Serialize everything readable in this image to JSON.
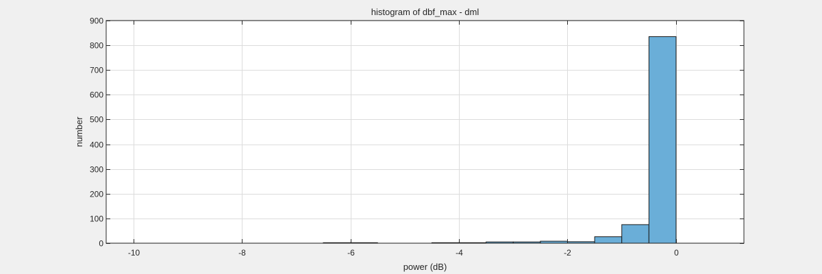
{
  "chart_data": {
    "type": "bar",
    "title": "histogram of dbf_max - dml",
    "xlabel": "power (dB)",
    "ylabel": "number",
    "xlim": [
      -10.5,
      1.25
    ],
    "ylim": [
      0,
      900
    ],
    "xticks": [
      -10,
      -8,
      -6,
      -4,
      -2,
      0
    ],
    "yticks": [
      0,
      100,
      200,
      300,
      400,
      500,
      600,
      700,
      800,
      900
    ],
    "grid": true,
    "bin_width": 0.5,
    "bins": [
      {
        "x0": -6.5,
        "x1": -6.0,
        "count": 2
      },
      {
        "x0": -6.0,
        "x1": -5.5,
        "count": 2
      },
      {
        "x0": -4.5,
        "x1": -4.0,
        "count": 2
      },
      {
        "x0": -4.0,
        "x1": -3.5,
        "count": 2
      },
      {
        "x0": -3.5,
        "x1": -3.0,
        "count": 5
      },
      {
        "x0": -3.0,
        "x1": -2.5,
        "count": 5
      },
      {
        "x0": -2.5,
        "x1": -2.0,
        "count": 8
      },
      {
        "x0": -2.0,
        "x1": -1.5,
        "count": 6
      },
      {
        "x0": -1.5,
        "x1": -1.0,
        "count": 26
      },
      {
        "x0": -1.0,
        "x1": -0.5,
        "count": 75
      },
      {
        "x0": -0.5,
        "x1": 0.0,
        "count": 835
      }
    ],
    "colors": {
      "bar_fill": "#6aaed8",
      "bar_edge": "#1a1a1a",
      "grid": "#dcdcdc",
      "axes": "#262626"
    }
  }
}
